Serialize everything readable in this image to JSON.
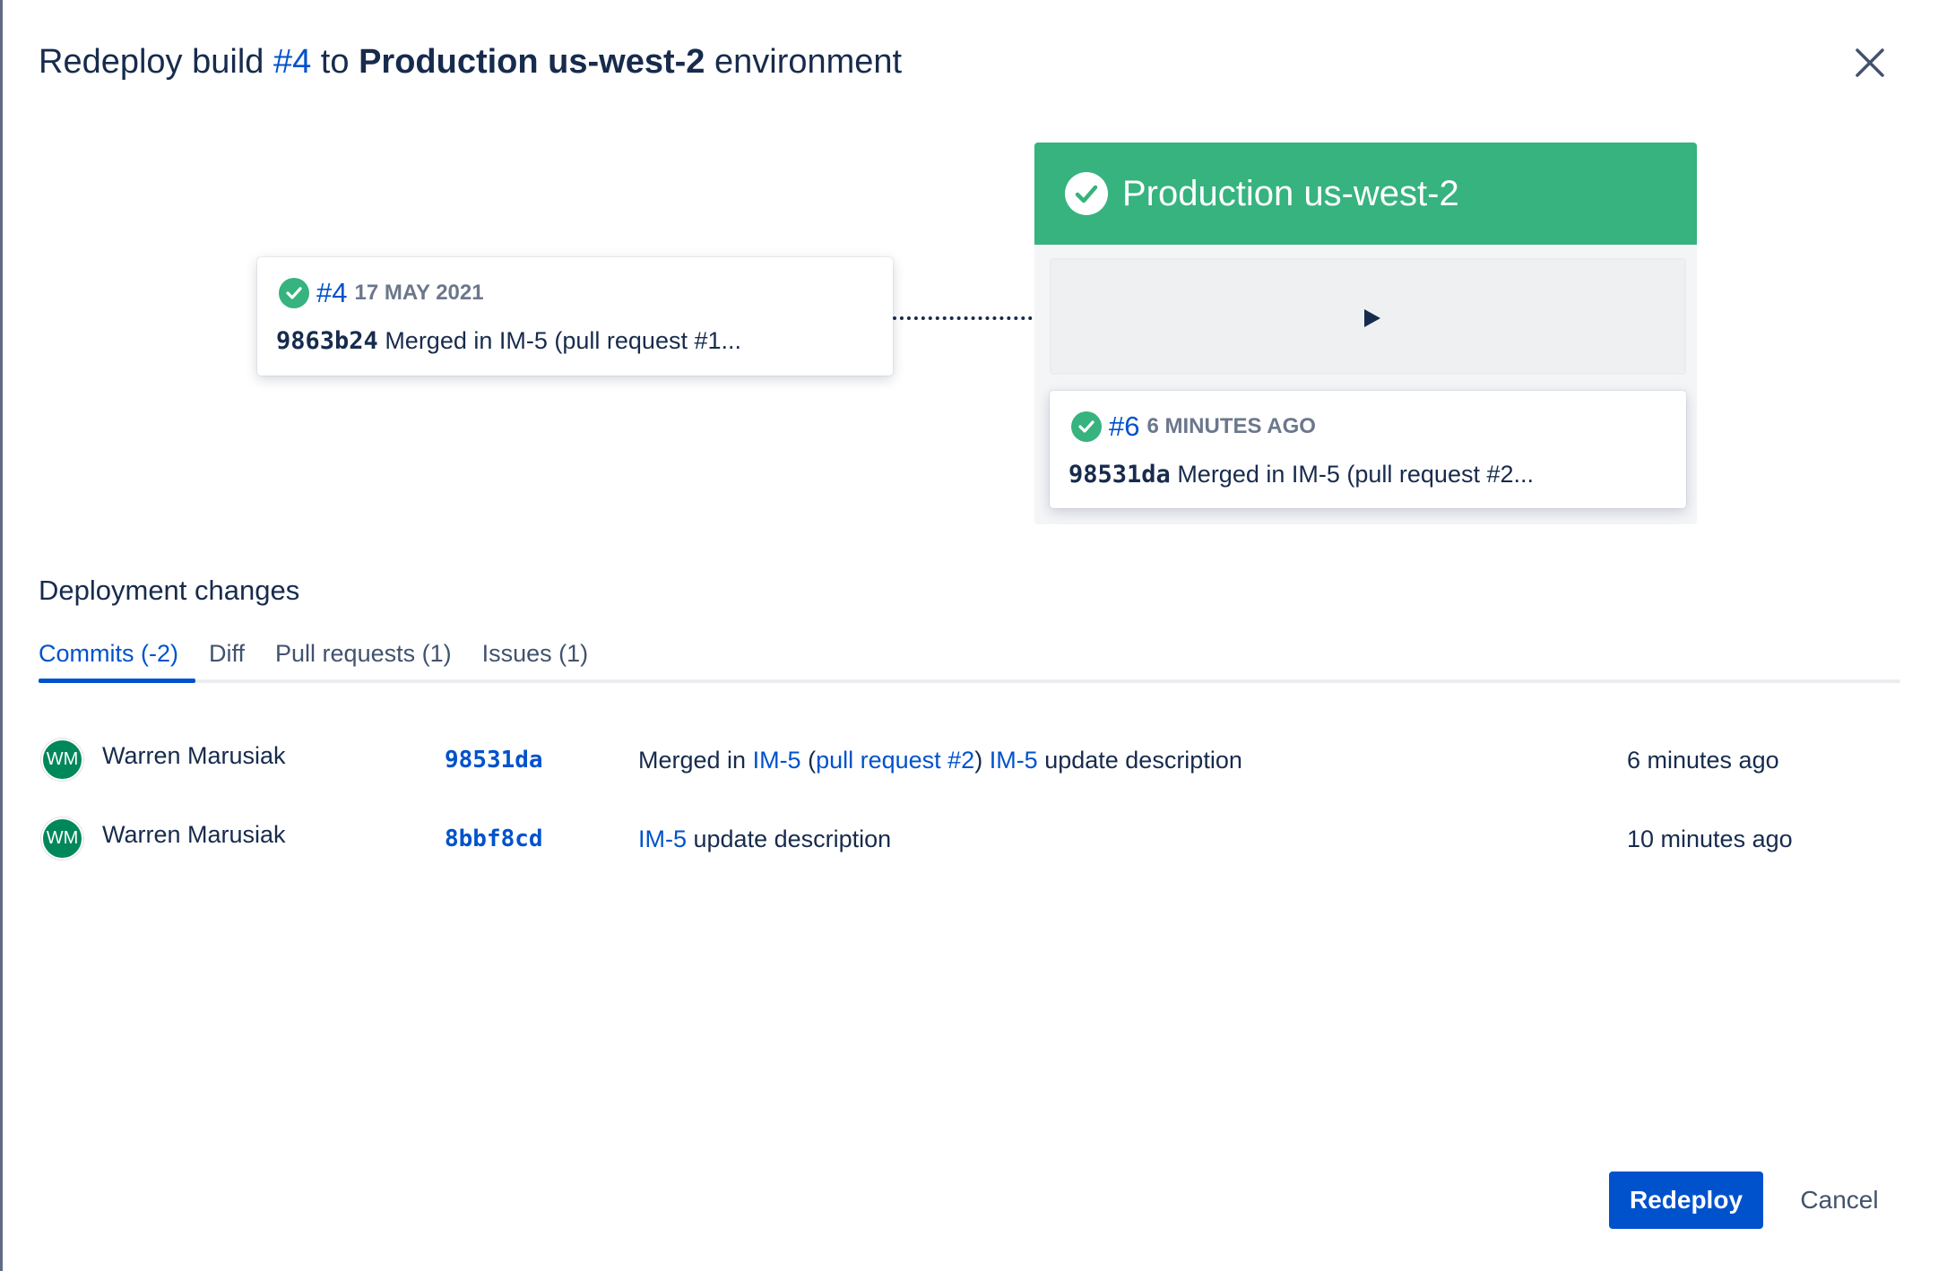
{
  "dialog": {
    "title_prefix": "Redeploy build ",
    "build_link": "#4",
    "title_mid": " to ",
    "environment": "Production us-west-2",
    "title_suffix": " environment",
    "close_icon": "close-icon"
  },
  "source_build": {
    "number": "#4",
    "date": "17 May 2021",
    "commit": "9863b24",
    "message": "Merged in IM-5 (pull request #1...",
    "status": "success"
  },
  "target_environment": {
    "name": "Production us-west-2",
    "status": "success",
    "color": "#36b37e",
    "current_build": {
      "number": "#6",
      "time": "6 minutes ago",
      "commit": "98531da",
      "message": "Merged in IM-5 (pull request #2..."
    }
  },
  "changes": {
    "heading": "Deployment changes",
    "tabs": [
      {
        "label": "Commits (-2)",
        "active": true
      },
      {
        "label": "Diff"
      },
      {
        "label": "Pull requests (1)"
      },
      {
        "label": "Issues (1)"
      }
    ],
    "commits": [
      {
        "initials": "WM",
        "author": "Warren Marusiak",
        "hash": "98531da",
        "msg": {
          "t1": "Merged in ",
          "l1": "IM-5",
          "t2": " (",
          "l2": "pull request #2",
          "t3": ") ",
          "l3": "IM-5",
          "t4": " update description"
        },
        "time": "6 minutes ago"
      },
      {
        "initials": "WM",
        "author": "Warren Marusiak",
        "hash": "8bbf8cd",
        "msg": {
          "l1": "IM-5",
          "t2": " update description"
        },
        "time": "10 minutes ago"
      }
    ]
  },
  "footer": {
    "primary": "Redeploy",
    "secondary": "Cancel"
  },
  "colors": {
    "accent": "#0052cc",
    "success": "#36b37e",
    "text": "#172b4d"
  }
}
